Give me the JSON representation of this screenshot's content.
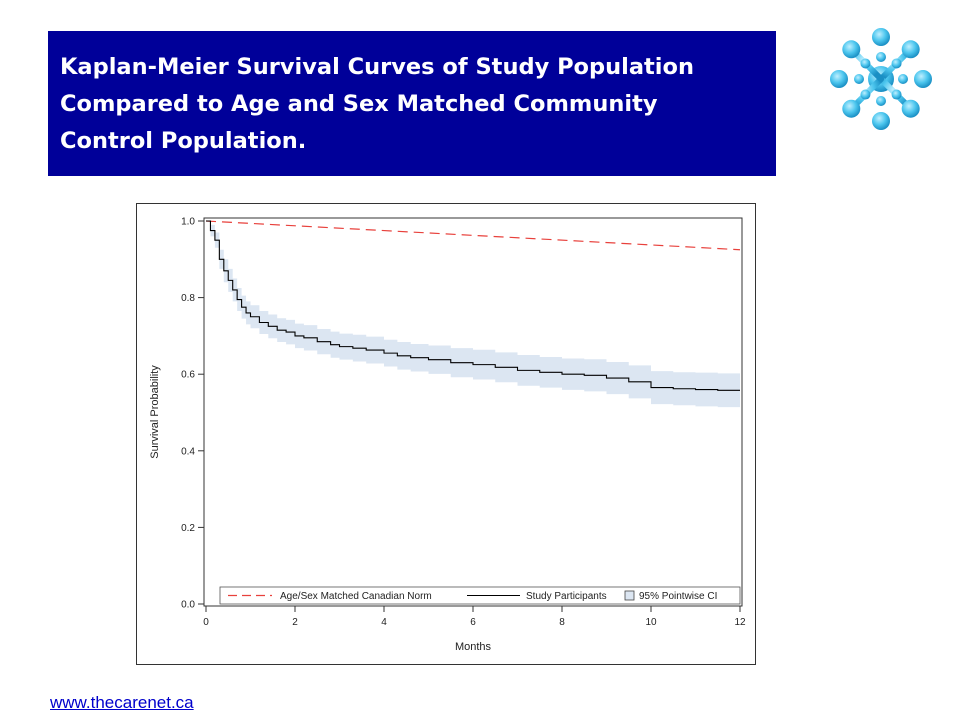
{
  "slide": {
    "title_lines": [
      "Kaplan-Meier Survival Curves of Study Population",
      "Compared to Age and Sex Matched Community",
      "Control Population."
    ],
    "footer_url": "www.thecarenet.ca",
    "logo_icon": "snowflake-molecule-logo"
  },
  "colors": {
    "title_bg": "#000099",
    "norm_line": "#e8413c",
    "study_line": "#000000",
    "ci_band": "#dce6f2"
  },
  "chart_data": {
    "type": "line",
    "title": "",
    "xlabel": "Months",
    "ylabel": "Survival Probability",
    "xlim": [
      0,
      12
    ],
    "ylim": [
      0,
      1
    ],
    "x_ticks": [
      "0",
      "2",
      "4",
      "6",
      "8",
      "10",
      "12"
    ],
    "y_ticks": [
      "0.0",
      "0.2",
      "0.4",
      "0.6",
      "0.8",
      "1.0"
    ],
    "grid": false,
    "legend_position": "bottom-inside",
    "series": [
      {
        "name": "Age/Sex Matched Canadian Norm",
        "style": "dashed",
        "x": [
          0,
          12
        ],
        "y": [
          1.0,
          0.925
        ]
      },
      {
        "name": "Study Participants",
        "style": "step",
        "x": [
          0,
          0.1,
          0.2,
          0.3,
          0.4,
          0.5,
          0.6,
          0.7,
          0.8,
          0.9,
          1.0,
          1.2,
          1.4,
          1.6,
          1.8,
          2.0,
          2.2,
          2.5,
          2.8,
          3.0,
          3.3,
          3.6,
          4.0,
          4.3,
          4.6,
          5.0,
          5.5,
          6.0,
          6.5,
          7.0,
          7.5,
          8.0,
          8.5,
          9.0,
          9.5,
          10.0,
          10.5,
          11.0,
          11.5,
          12.0
        ],
        "y": [
          1.0,
          0.975,
          0.95,
          0.9,
          0.87,
          0.845,
          0.82,
          0.795,
          0.775,
          0.76,
          0.75,
          0.735,
          0.725,
          0.715,
          0.71,
          0.7,
          0.695,
          0.685,
          0.677,
          0.672,
          0.668,
          0.663,
          0.655,
          0.648,
          0.643,
          0.638,
          0.63,
          0.625,
          0.618,
          0.61,
          0.605,
          0.6,
          0.597,
          0.59,
          0.58,
          0.565,
          0.562,
          0.56,
          0.558,
          0.558
        ]
      },
      {
        "name": "95% Pointwise CI",
        "style": "band",
        "x": [
          0,
          0.1,
          0.2,
          0.3,
          0.4,
          0.5,
          0.6,
          0.7,
          0.8,
          0.9,
          1.0,
          1.2,
          1.4,
          1.6,
          1.8,
          2.0,
          2.2,
          2.5,
          2.8,
          3.0,
          3.3,
          3.6,
          4.0,
          4.3,
          4.6,
          5.0,
          5.5,
          6.0,
          6.5,
          7.0,
          7.5,
          8.0,
          8.5,
          9.0,
          9.5,
          10.0,
          10.5,
          11.0,
          11.5,
          12.0
        ],
        "lower": [
          1.0,
          0.96,
          0.93,
          0.875,
          0.84,
          0.815,
          0.79,
          0.765,
          0.745,
          0.73,
          0.72,
          0.705,
          0.694,
          0.684,
          0.678,
          0.668,
          0.662,
          0.652,
          0.643,
          0.638,
          0.633,
          0.628,
          0.62,
          0.612,
          0.607,
          0.601,
          0.592,
          0.586,
          0.579,
          0.57,
          0.565,
          0.559,
          0.555,
          0.548,
          0.537,
          0.522,
          0.519,
          0.516,
          0.514,
          0.514
        ],
        "upper": [
          1.0,
          0.99,
          0.97,
          0.925,
          0.9,
          0.875,
          0.85,
          0.825,
          0.805,
          0.79,
          0.78,
          0.765,
          0.756,
          0.746,
          0.742,
          0.732,
          0.728,
          0.718,
          0.711,
          0.706,
          0.703,
          0.698,
          0.69,
          0.684,
          0.679,
          0.675,
          0.668,
          0.664,
          0.657,
          0.65,
          0.645,
          0.641,
          0.639,
          0.632,
          0.623,
          0.608,
          0.605,
          0.604,
          0.602,
          0.602
        ]
      }
    ]
  }
}
